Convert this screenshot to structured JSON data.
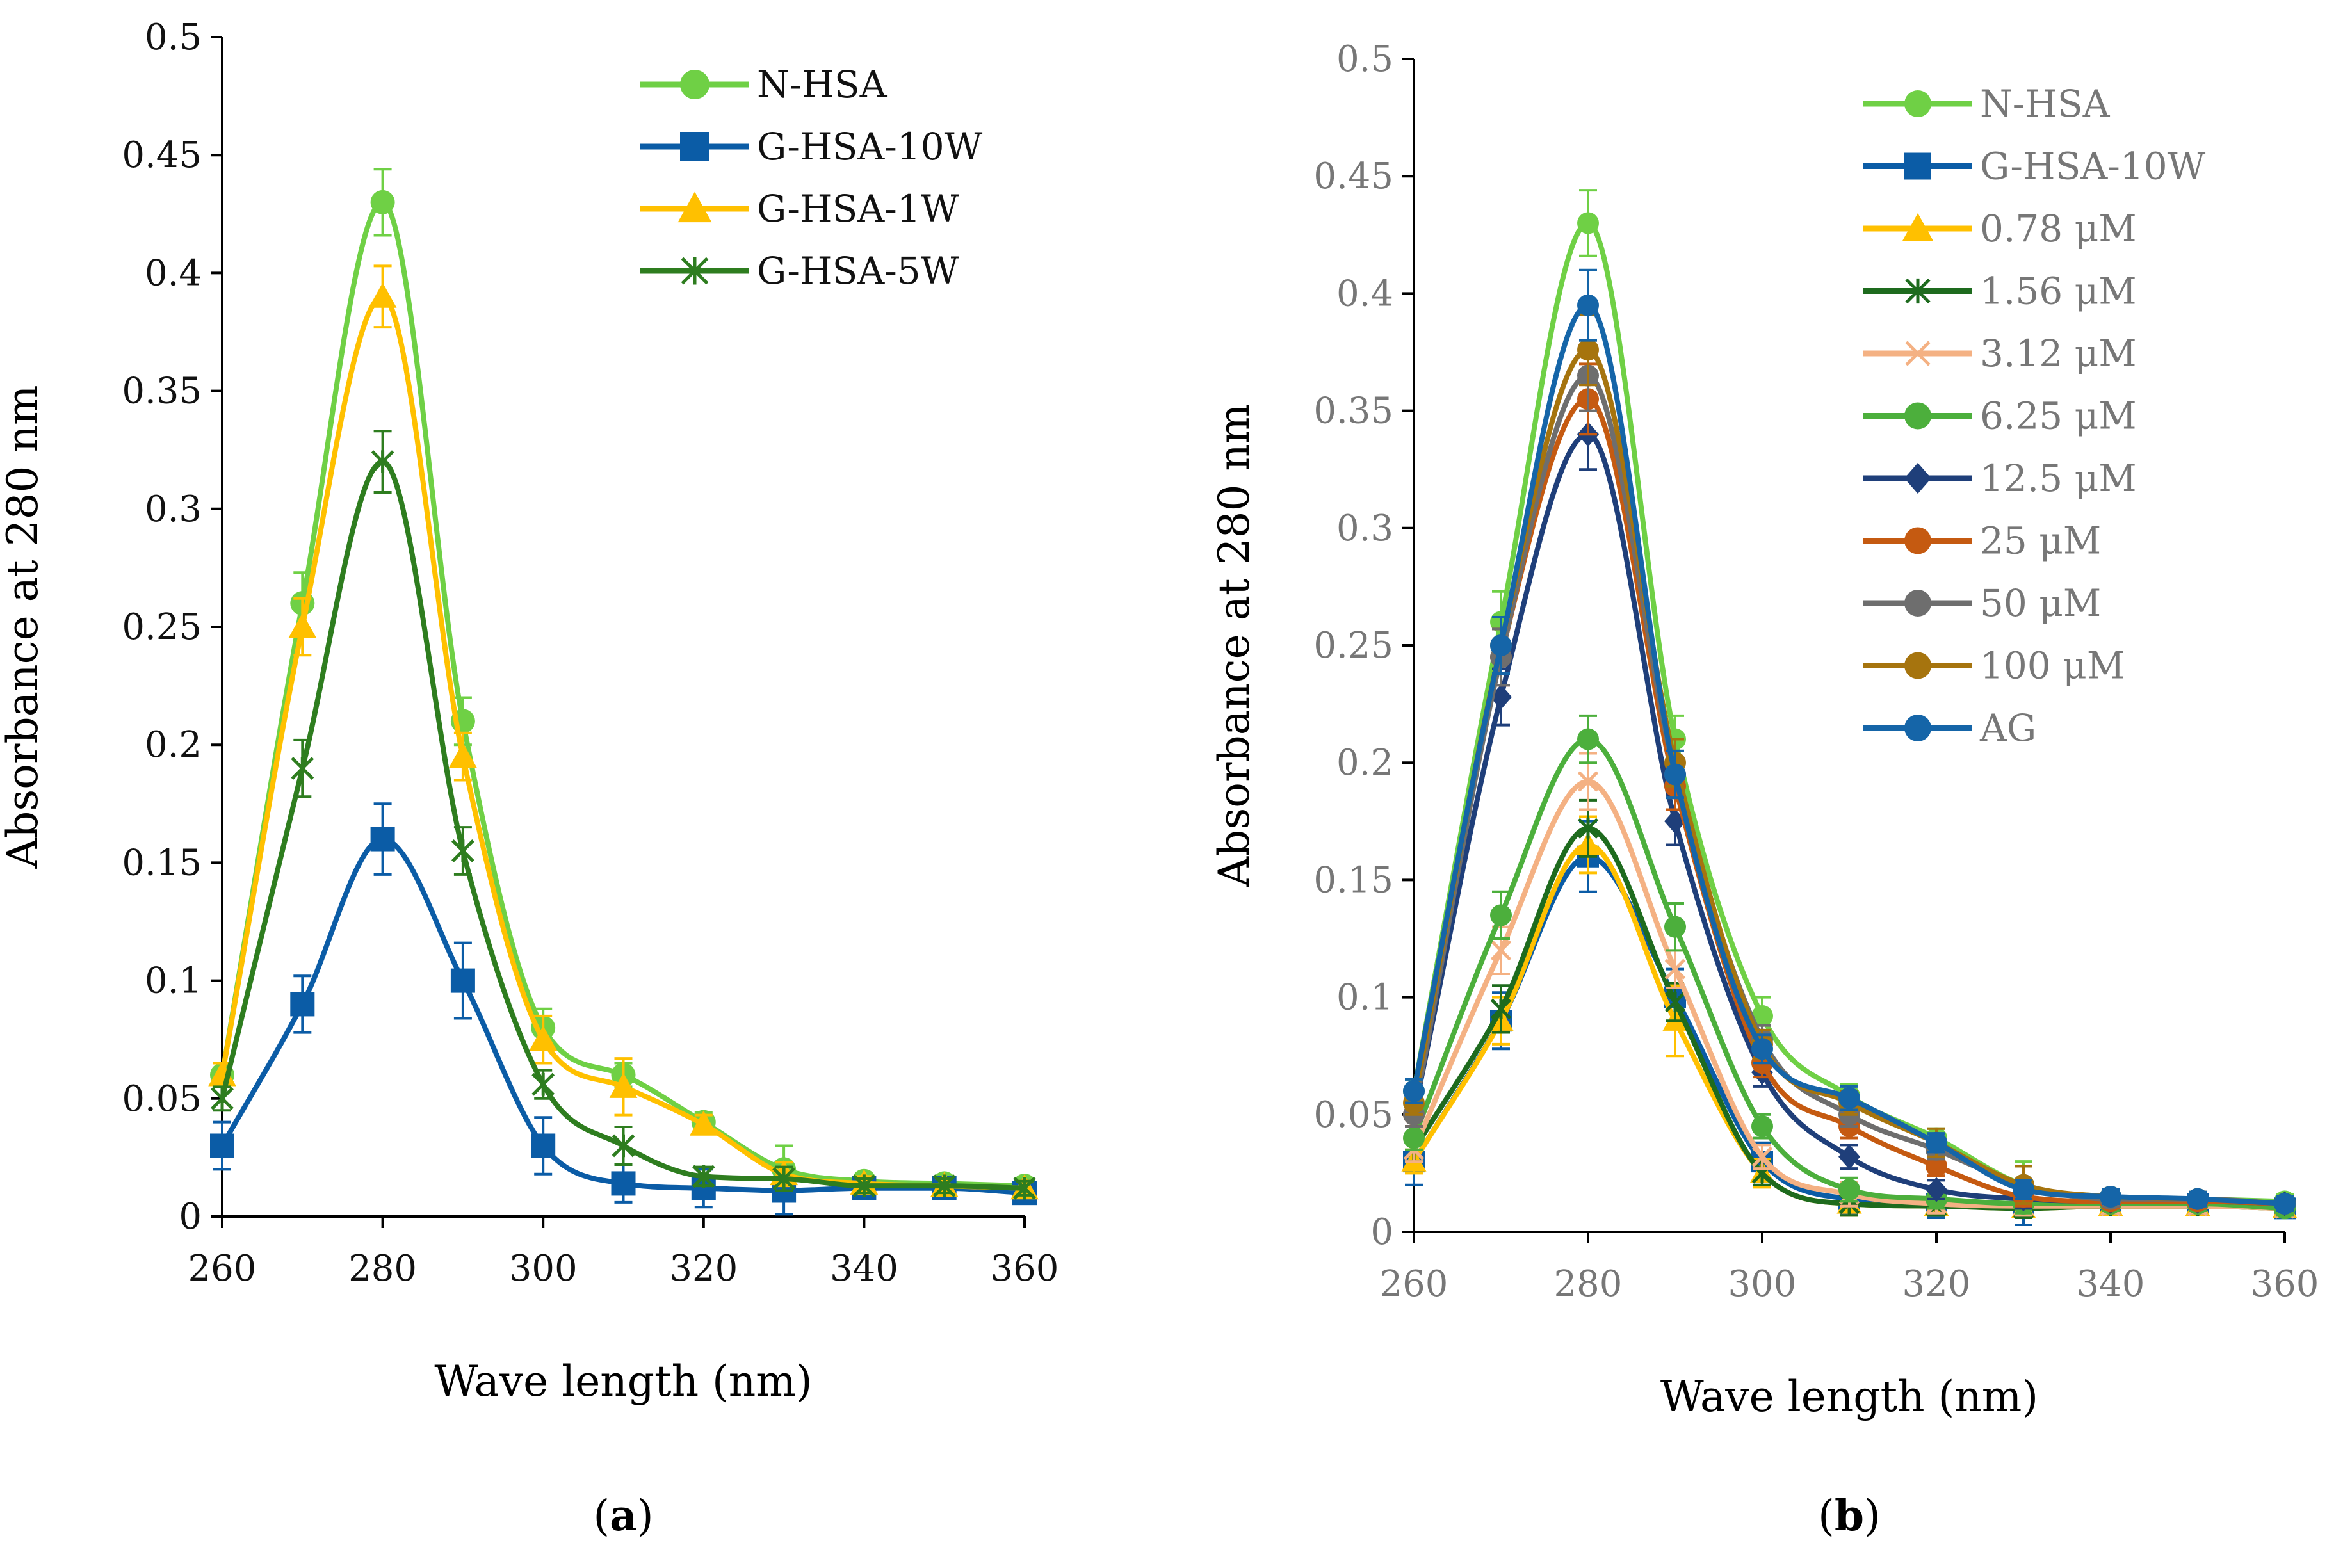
{
  "chart_data": [
    {
      "type": "line",
      "panel_label": "a",
      "xlabel": "Wave length (nm)",
      "ylabel": "Absorbance at 280 nm",
      "xlim": [
        260,
        360
      ],
      "ylim": [
        0,
        0.5
      ],
      "x_ticks": [
        260,
        280,
        300,
        320,
        340,
        360
      ],
      "y_ticks": [
        0,
        0.05,
        0.1,
        0.15,
        0.2,
        0.25,
        0.3,
        0.35,
        0.4,
        0.45,
        0.5
      ],
      "x_tick_labels": [
        "260",
        "280",
        "300",
        "320",
        "340",
        "360"
      ],
      "y_tick_labels": [
        "0",
        "0.05",
        "0.1",
        "0.15",
        "0.2",
        "0.25",
        "0.3",
        "0.35",
        "0.4",
        "0.45",
        "0.5"
      ],
      "legend_position": "top-right",
      "x": [
        260,
        270,
        280,
        290,
        300,
        310,
        320,
        330,
        340,
        350,
        360
      ],
      "series": [
        {
          "name": "N-HSA",
          "color": "#6fd045",
          "marker": "circle",
          "values": [
            0.06,
            0.26,
            0.43,
            0.21,
            0.08,
            0.06,
            0.04,
            0.02,
            0.015,
            0.014,
            0.013
          ],
          "errors": [
            0.005,
            0.013,
            0.014,
            0.01,
            0.008,
            0.005,
            0.004,
            0.01,
            0.003,
            0.003,
            0.003
          ]
        },
        {
          "name": "G-HSA-10W",
          "color": "#0b5ca6",
          "marker": "square",
          "values": [
            0.03,
            0.09,
            0.16,
            0.1,
            0.03,
            0.014,
            0.012,
            0.011,
            0.012,
            0.012,
            0.01
          ],
          "errors": [
            0.01,
            0.012,
            0.015,
            0.016,
            0.012,
            0.008,
            0.008,
            0.01,
            0.003,
            0.003,
            0.003
          ]
        },
        {
          "name": "G-HSA-1W",
          "color": "#ffc000",
          "marker": "triangle",
          "values": [
            0.06,
            0.25,
            0.39,
            0.195,
            0.075,
            0.055,
            0.039,
            0.018,
            0.014,
            0.013,
            0.012
          ],
          "errors": [
            0.005,
            0.012,
            0.013,
            0.01,
            0.01,
            0.012,
            0.004,
            0.005,
            0.003,
            0.003,
            0.003
          ]
        },
        {
          "name": "G-HSA-5W",
          "color": "#2e7d1f",
          "marker": "star",
          "values": [
            0.05,
            0.19,
            0.32,
            0.155,
            0.056,
            0.03,
            0.017,
            0.016,
            0.013,
            0.013,
            0.012
          ],
          "errors": [
            0.005,
            0.012,
            0.013,
            0.01,
            0.006,
            0.008,
            0.004,
            0.005,
            0.003,
            0.003,
            0.003
          ]
        }
      ]
    },
    {
      "type": "line",
      "panel_label": "b",
      "xlabel": "Wave length (nm)",
      "ylabel": "Absorbance at 280 nm",
      "xlim": [
        260,
        360
      ],
      "ylim": [
        0,
        0.5
      ],
      "x_ticks": [
        260,
        280,
        300,
        320,
        340,
        360
      ],
      "y_ticks": [
        0,
        0.05,
        0.1,
        0.15,
        0.2,
        0.25,
        0.3,
        0.35,
        0.4,
        0.45,
        0.5
      ],
      "x_tick_labels": [
        "260",
        "280",
        "300",
        "320",
        "340",
        "360"
      ],
      "y_tick_labels": [
        "0",
        "0.05",
        "0.1",
        "0.15",
        "0.2",
        "0.25",
        "0.3",
        "0.35",
        "0.4",
        "0.45",
        "0.5"
      ],
      "legend_position": "top-right",
      "x": [
        260,
        270,
        280,
        290,
        300,
        310,
        320,
        330,
        340,
        350,
        360
      ],
      "series": [
        {
          "name": "N-HSA",
          "color": "#6fd045",
          "marker": "circle",
          "values": [
            0.06,
            0.26,
            0.43,
            0.21,
            0.092,
            0.058,
            0.04,
            0.02,
            0.015,
            0.014,
            0.013
          ],
          "errors": [
            0.005,
            0.013,
            0.014,
            0.01,
            0.008,
            0.005,
            0.004,
            0.01,
            0.003,
            0.003,
            0.003
          ]
        },
        {
          "name": "G-HSA-10W",
          "color": "#0b5ca6",
          "marker": "square",
          "values": [
            0.03,
            0.09,
            0.16,
            0.1,
            0.03,
            0.014,
            0.012,
            0.011,
            0.012,
            0.012,
            0.01
          ],
          "errors": [
            0.01,
            0.012,
            0.015,
            0.012,
            0.008,
            0.006,
            0.006,
            0.008,
            0.003,
            0.003,
            0.003
          ]
        },
        {
          "name": "0.78 μM",
          "color": "#ffc000",
          "marker": "triangle",
          "values": [
            0.03,
            0.09,
            0.165,
            0.09,
            0.025,
            0.012,
            0.011,
            0.01,
            0.011,
            0.011,
            0.01
          ],
          "errors": [
            0.005,
            0.01,
            0.012,
            0.015,
            0.006,
            0.005,
            0.004,
            0.004,
            0.003,
            0.003,
            0.003
          ]
        },
        {
          "name": "1.56 μM",
          "color": "#1e6b1e",
          "marker": "star",
          "values": [
            0.035,
            0.095,
            0.172,
            0.098,
            0.025,
            0.012,
            0.011,
            0.01,
            0.011,
            0.011,
            0.01
          ],
          "errors": [
            0.005,
            0.01,
            0.012,
            0.008,
            0.005,
            0.005,
            0.004,
            0.004,
            0.003,
            0.003,
            0.003
          ]
        },
        {
          "name": "3.12 μM",
          "color": "#f4b183",
          "marker": "x",
          "values": [
            0.035,
            0.12,
            0.192,
            0.112,
            0.032,
            0.016,
            0.012,
            0.011,
            0.011,
            0.011,
            0.01
          ],
          "errors": [
            0.005,
            0.01,
            0.012,
            0.008,
            0.005,
            0.005,
            0.004,
            0.004,
            0.003,
            0.003,
            0.003
          ]
        },
        {
          "name": "6.25 μM",
          "color": "#4caf3c",
          "marker": "circle",
          "values": [
            0.04,
            0.135,
            0.21,
            0.13,
            0.045,
            0.018,
            0.014,
            0.012,
            0.012,
            0.012,
            0.01
          ],
          "errors": [
            0.005,
            0.01,
            0.01,
            0.01,
            0.005,
            0.005,
            0.004,
            0.004,
            0.003,
            0.003,
            0.003
          ]
        },
        {
          "name": "12.5 μM",
          "color": "#1f3f7a",
          "marker": "diamond",
          "values": [
            0.05,
            0.228,
            0.34,
            0.175,
            0.068,
            0.032,
            0.018,
            0.014,
            0.013,
            0.013,
            0.012
          ],
          "errors": [
            0.005,
            0.012,
            0.015,
            0.01,
            0.006,
            0.005,
            0.004,
            0.004,
            0.003,
            0.003,
            0.003
          ]
        },
        {
          "name": "25 μM",
          "color": "#c55a11",
          "marker": "circle",
          "values": [
            0.05,
            0.245,
            0.355,
            0.19,
            0.072,
            0.045,
            0.028,
            0.015,
            0.013,
            0.013,
            0.012
          ],
          "errors": [
            0.005,
            0.012,
            0.015,
            0.01,
            0.006,
            0.005,
            0.004,
            0.004,
            0.003,
            0.003,
            0.003
          ]
        },
        {
          "name": "50 μM",
          "color": "#6e6e6e",
          "marker": "circle",
          "values": [
            0.05,
            0.245,
            0.365,
            0.195,
            0.082,
            0.05,
            0.035,
            0.02,
            0.014,
            0.014,
            0.012
          ],
          "errors": [
            0.005,
            0.012,
            0.015,
            0.01,
            0.006,
            0.005,
            0.004,
            0.008,
            0.003,
            0.003,
            0.003
          ]
        },
        {
          "name": "100 μM",
          "color": "#a6740e",
          "marker": "circle",
          "values": [
            0.055,
            0.25,
            0.376,
            0.2,
            0.08,
            0.055,
            0.038,
            0.02,
            0.015,
            0.014,
            0.012
          ],
          "errors": [
            0.005,
            0.012,
            0.015,
            0.01,
            0.006,
            0.005,
            0.006,
            0.008,
            0.003,
            0.003,
            0.003
          ]
        },
        {
          "name": "AG",
          "color": "#1565a8",
          "marker": "circle",
          "values": [
            0.06,
            0.25,
            0.395,
            0.195,
            0.078,
            0.057,
            0.038,
            0.018,
            0.015,
            0.014,
            0.012
          ],
          "errors": [
            0.005,
            0.012,
            0.015,
            0.01,
            0.006,
            0.005,
            0.004,
            0.004,
            0.003,
            0.003,
            0.003
          ]
        }
      ]
    }
  ]
}
